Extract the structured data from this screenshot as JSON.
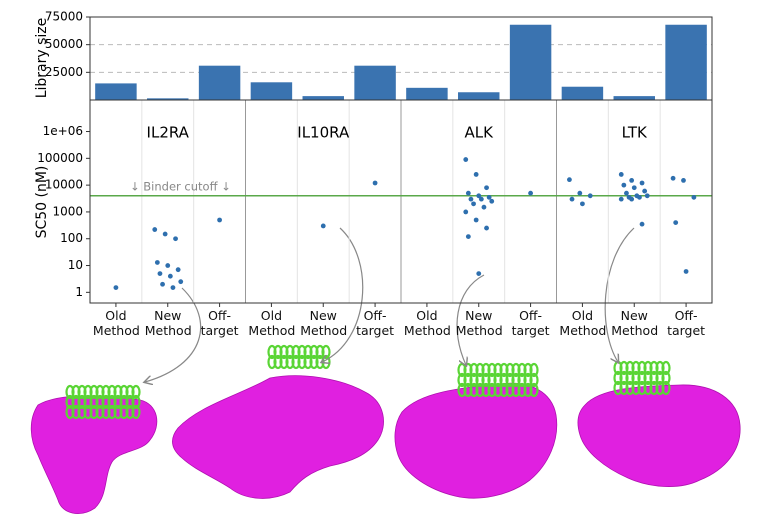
{
  "chart_data": [
    {
      "type": "bar",
      "ylabel": "Library size",
      "color": "#3a73b0",
      "values": [
        15000,
        1500,
        31000,
        16000,
        3500,
        31000,
        11000,
        7000,
        68000,
        12000,
        3500,
        68000
      ],
      "ylim": [
        0,
        75000
      ],
      "yticks": [
        25000,
        50000,
        75000
      ],
      "grid": true
    },
    {
      "type": "scatter",
      "ylabel": "SC50 (nM)",
      "log": true,
      "color": "#2e6fae",
      "groups": [
        "IL2RA",
        "IL10RA",
        "ALK",
        "LTK"
      ],
      "categories": [
        "Old Method",
        "New Method",
        "Off-target",
        "Old Method",
        "New Method",
        "Off-target",
        "Old Method",
        "New Method",
        "Off-target",
        "Old Method",
        "New Method",
        "Off-target"
      ],
      "values": [
        [
          1.5
        ],
        [
          220,
          150,
          100,
          13,
          10,
          7,
          5,
          4,
          2.5,
          2,
          1.5
        ],
        [
          500
        ],
        [],
        [
          300
        ],
        [
          12000
        ],
        [],
        [
          90000,
          25000,
          8000,
          5000,
          4000,
          3500,
          3000,
          3000,
          2500,
          2000,
          1500,
          1000,
          500,
          250,
          120,
          5
        ],
        [
          5000
        ],
        [
          16000,
          5000,
          4000,
          3000,
          2000
        ],
        [
          25000,
          15000,
          12000,
          10000,
          8000,
          6000,
          5000,
          4000,
          4000,
          3500,
          3500,
          3000,
          3000,
          350
        ],
        [
          18000,
          15000,
          3500,
          400,
          6
        ]
      ],
      "ylim": [
        0.4,
        15000000
      ],
      "yticks": [
        1,
        10,
        100,
        1000,
        10000,
        100000,
        {
          "value": 1000000,
          "label": "1e+06"
        }
      ],
      "cutoff": {
        "value": 4000,
        "label": "↓ Binder cutoff ↓",
        "color": "#5aa84a"
      }
    }
  ]
}
